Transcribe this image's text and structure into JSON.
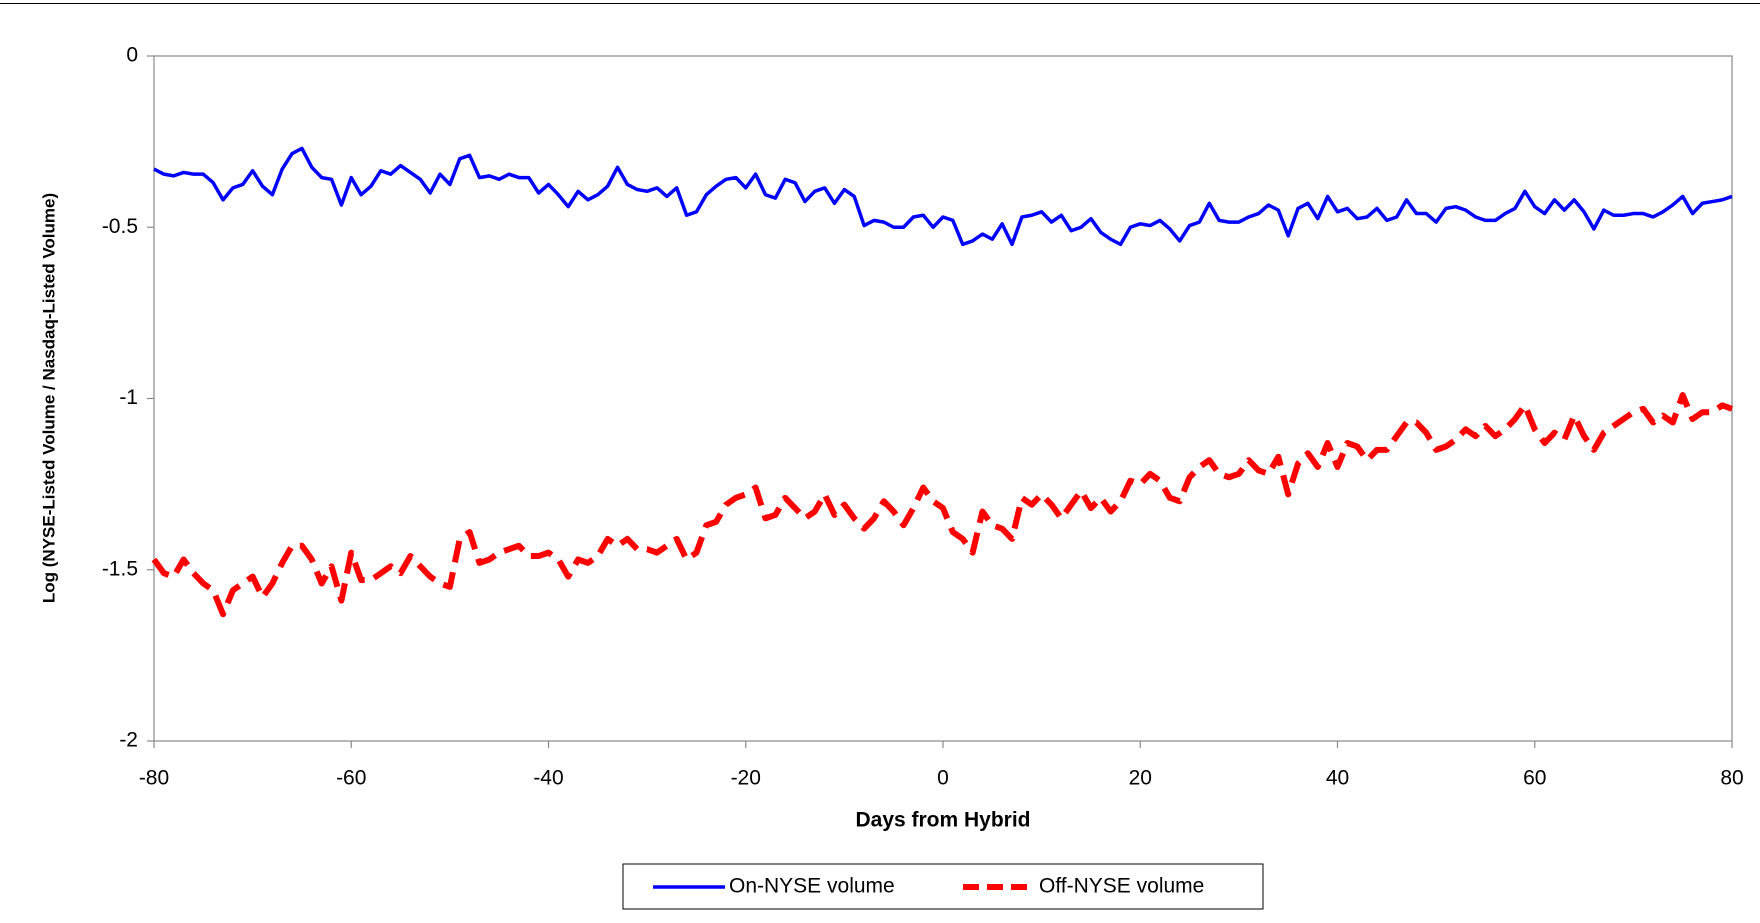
{
  "chart_data": {
    "type": "line",
    "xlabel": "Days from Hybrid",
    "ylabel": "Log (NYSE-Listed Volume / Nasdaq-Listed Volume)",
    "x": [
      -80,
      -79,
      -78,
      -77,
      -76,
      -75,
      -74,
      -73,
      -72,
      -71,
      -70,
      -69,
      -68,
      -67,
      -66,
      -65,
      -64,
      -63,
      -62,
      -61,
      -60,
      -59,
      -58,
      -57,
      -56,
      -55,
      -54,
      -53,
      -52,
      -51,
      -50,
      -49,
      -48,
      -47,
      -46,
      -45,
      -44,
      -43,
      -42,
      -41,
      -40,
      -39,
      -38,
      -37,
      -36,
      -35,
      -34,
      -33,
      -32,
      -31,
      -30,
      -29,
      -28,
      -27,
      -26,
      -25,
      -24,
      -23,
      -22,
      -21,
      -20,
      -19,
      -18,
      -17,
      -16,
      -15,
      -14,
      -13,
      -12,
      -11,
      -10,
      -9,
      -8,
      -7,
      -6,
      -5,
      -4,
      -3,
      -2,
      -1,
      0,
      1,
      2,
      3,
      4,
      5,
      6,
      7,
      8,
      9,
      10,
      11,
      12,
      13,
      14,
      15,
      16,
      17,
      18,
      19,
      20,
      21,
      22,
      23,
      24,
      25,
      26,
      27,
      28,
      29,
      30,
      31,
      32,
      33,
      34,
      35,
      36,
      37,
      38,
      39,
      40,
      41,
      42,
      43,
      44,
      45,
      46,
      47,
      48,
      49,
      50,
      51,
      52,
      53,
      54,
      55,
      56,
      57,
      58,
      59,
      60,
      61,
      62,
      63,
      64,
      65,
      66,
      67,
      68,
      69,
      70,
      71,
      72,
      73,
      74,
      75,
      76,
      77,
      78,
      79,
      80
    ],
    "series": [
      {
        "name": "On-NYSE volume",
        "color": "#0000ff",
        "dash": "solid",
        "values": [
          -0.33,
          -0.345,
          -0.35,
          -0.34,
          -0.345,
          -0.345,
          -0.37,
          -0.42,
          -0.385,
          -0.375,
          -0.335,
          -0.38,
          -0.405,
          -0.33,
          -0.285,
          -0.27,
          -0.325,
          -0.355,
          -0.36,
          -0.435,
          -0.355,
          -0.405,
          -0.38,
          -0.335,
          -0.345,
          -0.32,
          -0.34,
          -0.36,
          -0.4,
          -0.345,
          -0.375,
          -0.3,
          -0.29,
          -0.355,
          -0.35,
          -0.36,
          -0.345,
          -0.355,
          -0.355,
          -0.4,
          -0.375,
          -0.405,
          -0.44,
          -0.395,
          -0.42,
          -0.405,
          -0.38,
          -0.325,
          -0.375,
          -0.39,
          -0.395,
          -0.385,
          -0.41,
          -0.385,
          -0.465,
          -0.455,
          -0.405,
          -0.38,
          -0.36,
          -0.355,
          -0.385,
          -0.345,
          -0.405,
          -0.415,
          -0.36,
          -0.37,
          -0.425,
          -0.395,
          -0.385,
          -0.43,
          -0.39,
          -0.41,
          -0.495,
          -0.48,
          -0.485,
          -0.5,
          -0.5,
          -0.47,
          -0.465,
          -0.5,
          -0.47,
          -0.48,
          -0.55,
          -0.54,
          -0.52,
          -0.535,
          -0.49,
          -0.55,
          -0.47,
          -0.465,
          -0.455,
          -0.485,
          -0.465,
          -0.51,
          -0.5,
          -0.475,
          -0.515,
          -0.535,
          -0.55,
          -0.5,
          -0.49,
          -0.495,
          -0.48,
          -0.505,
          -0.54,
          -0.495,
          -0.485,
          -0.43,
          -0.48,
          -0.485,
          -0.485,
          -0.47,
          -0.46,
          -0.435,
          -0.45,
          -0.525,
          -0.445,
          -0.43,
          -0.475,
          -0.41,
          -0.455,
          -0.445,
          -0.475,
          -0.47,
          -0.445,
          -0.48,
          -0.47,
          -0.42,
          -0.46,
          -0.46,
          -0.485,
          -0.445,
          -0.44,
          -0.45,
          -0.47,
          -0.48,
          -0.48,
          -0.46,
          -0.445,
          -0.395,
          -0.44,
          -0.46,
          -0.42,
          -0.45,
          -0.42,
          -0.455,
          -0.505,
          -0.45,
          -0.465,
          -0.465,
          -0.46,
          -0.46,
          -0.47,
          -0.455,
          -0.435,
          -0.41,
          -0.46,
          -0.43,
          -0.425,
          -0.42,
          -0.41
        ]
      },
      {
        "name": "Off-NYSE volume",
        "color": "#ff0000",
        "dash": "dashed",
        "values": [
          -1.47,
          -1.51,
          -1.52,
          -1.47,
          -1.51,
          -1.54,
          -1.56,
          -1.63,
          -1.56,
          -1.54,
          -1.52,
          -1.58,
          -1.54,
          -1.48,
          -1.43,
          -1.43,
          -1.47,
          -1.54,
          -1.49,
          -1.59,
          -1.45,
          -1.53,
          -1.53,
          -1.51,
          -1.49,
          -1.51,
          -1.46,
          -1.49,
          -1.52,
          -1.54,
          -1.55,
          -1.41,
          -1.39,
          -1.48,
          -1.47,
          -1.45,
          -1.44,
          -1.43,
          -1.46,
          -1.46,
          -1.45,
          -1.47,
          -1.52,
          -1.47,
          -1.48,
          -1.46,
          -1.41,
          -1.43,
          -1.41,
          -1.44,
          -1.44,
          -1.45,
          -1.43,
          -1.41,
          -1.47,
          -1.45,
          -1.37,
          -1.36,
          -1.31,
          -1.29,
          -1.28,
          -1.26,
          -1.35,
          -1.34,
          -1.29,
          -1.32,
          -1.35,
          -1.33,
          -1.28,
          -1.34,
          -1.31,
          -1.35,
          -1.38,
          -1.35,
          -1.3,
          -1.33,
          -1.37,
          -1.32,
          -1.26,
          -1.3,
          -1.32,
          -1.39,
          -1.41,
          -1.45,
          -1.33,
          -1.37,
          -1.38,
          -1.41,
          -1.29,
          -1.31,
          -1.28,
          -1.31,
          -1.35,
          -1.31,
          -1.27,
          -1.32,
          -1.29,
          -1.33,
          -1.3,
          -1.24,
          -1.25,
          -1.22,
          -1.24,
          -1.29,
          -1.3,
          -1.23,
          -1.2,
          -1.18,
          -1.22,
          -1.23,
          -1.22,
          -1.18,
          -1.21,
          -1.22,
          -1.17,
          -1.28,
          -1.19,
          -1.16,
          -1.2,
          -1.13,
          -1.2,
          -1.13,
          -1.14,
          -1.18,
          -1.15,
          -1.15,
          -1.11,
          -1.07,
          -1.07,
          -1.1,
          -1.15,
          -1.14,
          -1.12,
          -1.09,
          -1.11,
          -1.08,
          -1.11,
          -1.09,
          -1.06,
          -1.02,
          -1.09,
          -1.13,
          -1.1,
          -1.12,
          -1.05,
          -1.11,
          -1.15,
          -1.1,
          -1.08,
          -1.06,
          -1.04,
          -1.03,
          -1.07,
          -1.05,
          -1.07,
          -0.99,
          -1.06,
          -1.04,
          -1.04,
          -1.02,
          -1.03
        ]
      }
    ],
    "xlim": [
      -80,
      80
    ],
    "xticks": [
      -80,
      -60,
      -40,
      -20,
      0,
      20,
      40,
      60,
      80
    ],
    "ylim": [
      -2,
      0
    ],
    "yticks": [
      0,
      -0.5,
      -1,
      -1.5,
      -2
    ],
    "grid": false,
    "legend": "bottom"
  }
}
